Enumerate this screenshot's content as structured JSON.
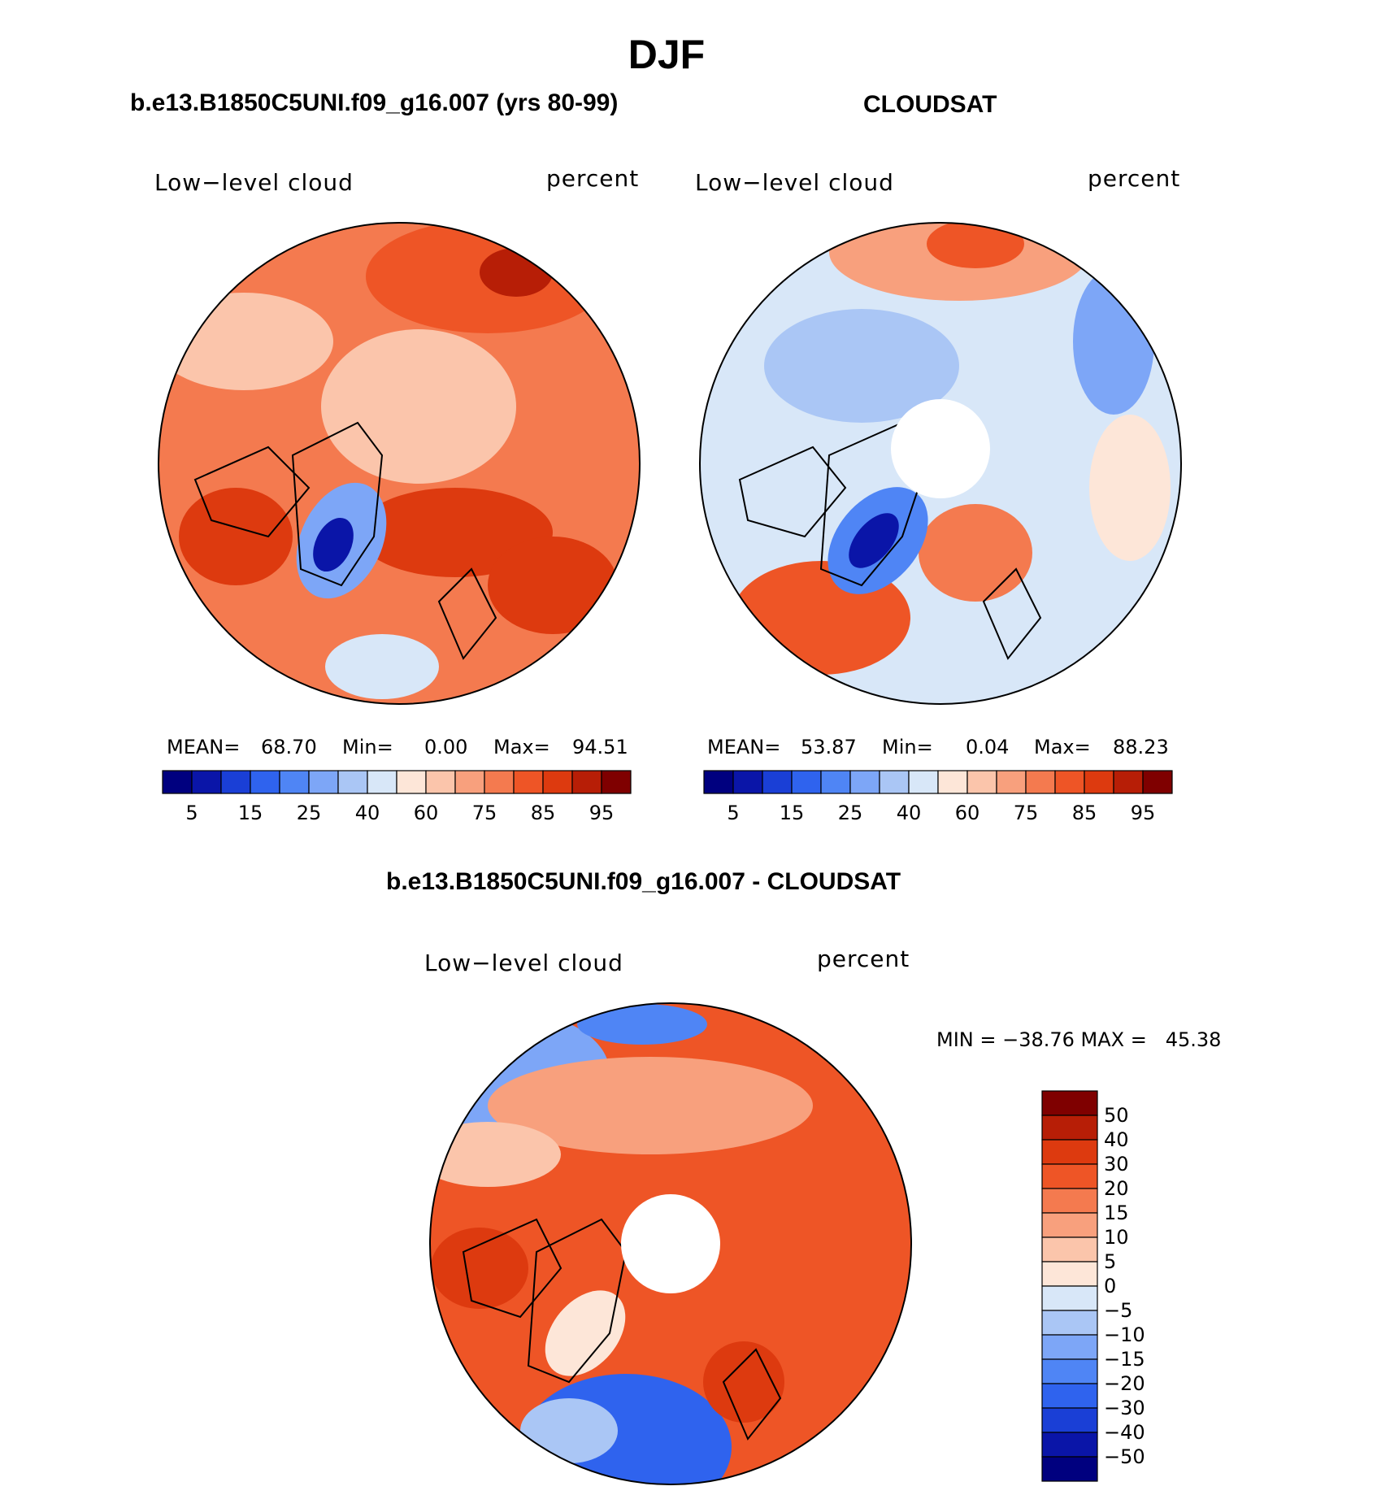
{
  "figure": {
    "title": "DJF"
  },
  "panels": [
    {
      "title": "b.e13.B1850C5UNI.f09_g16.007 (yrs 80-99)",
      "left_label": "Low−level cloud",
      "right_label": "percent",
      "stats": {
        "mean_label": "MEAN=",
        "mean_value": "68.70",
        "min_label": "Min=",
        "min_value": "0.00",
        "max_label": "Max=",
        "max_value": "94.51"
      },
      "has_pole_hole": false
    },
    {
      "title": "CLOUDSAT",
      "left_label": "Low−level cloud",
      "right_label": "percent",
      "stats": {
        "mean_label": "MEAN=",
        "mean_value": "53.87",
        "min_label": "Min=",
        "min_value": "0.04",
        "max_label": "Max=",
        "max_value": "88.23"
      },
      "has_pole_hole": true
    },
    {
      "title": "b.e13.B1850C5UNI.f09_g16.007 - CLOUDSAT",
      "left_label": "Low−level cloud",
      "right_label": "percent",
      "minmax_text": "MIN = −38.76 MAX =   45.38",
      "has_pole_hole": true
    }
  ],
  "chart_data": [
    {
      "type": "heatmap",
      "title": "b.e13.B1850C5UNI.f09_g16.007 (yrs 80-99)",
      "variable": "Low−level cloud",
      "units": "percent",
      "projection": "north polar stereographic",
      "mean": 68.7,
      "min": 0.0,
      "max": 94.51,
      "colorbar": {
        "orientation": "horizontal",
        "tick_labels": [
          "5",
          "15",
          "25",
          "40",
          "60",
          "75",
          "85",
          "95"
        ],
        "colors": [
          "#00007f",
          "#0a15a8",
          "#1a3fd6",
          "#2f63ee",
          "#4f85f5",
          "#7da6f7",
          "#aac6f5",
          "#d8e7f8",
          "#fde6d8",
          "#fbc5ab",
          "#f8a07d",
          "#f47a4f",
          "#ee5526",
          "#dd3a0f",
          "#b71e06",
          "#7f0000"
        ]
      }
    },
    {
      "type": "heatmap",
      "title": "CLOUDSAT",
      "variable": "Low−level cloud",
      "units": "percent",
      "projection": "north polar stereographic",
      "mean": 53.87,
      "min": 0.04,
      "max": 88.23,
      "colorbar": {
        "orientation": "horizontal",
        "tick_labels": [
          "5",
          "15",
          "25",
          "40",
          "60",
          "75",
          "85",
          "95"
        ],
        "colors": [
          "#00007f",
          "#0a15a8",
          "#1a3fd6",
          "#2f63ee",
          "#4f85f5",
          "#7da6f7",
          "#aac6f5",
          "#d8e7f8",
          "#fde6d8",
          "#fbc5ab",
          "#f8a07d",
          "#f47a4f",
          "#ee5526",
          "#dd3a0f",
          "#b71e06",
          "#7f0000"
        ]
      }
    },
    {
      "type": "heatmap",
      "title": "b.e13.B1850C5UNI.f09_g16.007 - CLOUDSAT",
      "variable": "Low−level cloud",
      "units": "percent",
      "projection": "north polar stereographic",
      "min": -38.76,
      "max": 45.38,
      "colorbar": {
        "orientation": "vertical",
        "tick_labels": [
          "50",
          "40",
          "30",
          "20",
          "15",
          "10",
          "5",
          "0",
          "−5",
          "−10",
          "−15",
          "−20",
          "−30",
          "−40",
          "−50"
        ],
        "colors": [
          "#7f0000",
          "#b71e06",
          "#dd3a0f",
          "#ee5526",
          "#f47a4f",
          "#f8a07d",
          "#fbc5ab",
          "#fde6d8",
          "#d8e7f8",
          "#aac6f5",
          "#7da6f7",
          "#4f85f5",
          "#2f63ee",
          "#1a3fd6",
          "#0a15a8",
          "#00007f"
        ]
      }
    }
  ]
}
